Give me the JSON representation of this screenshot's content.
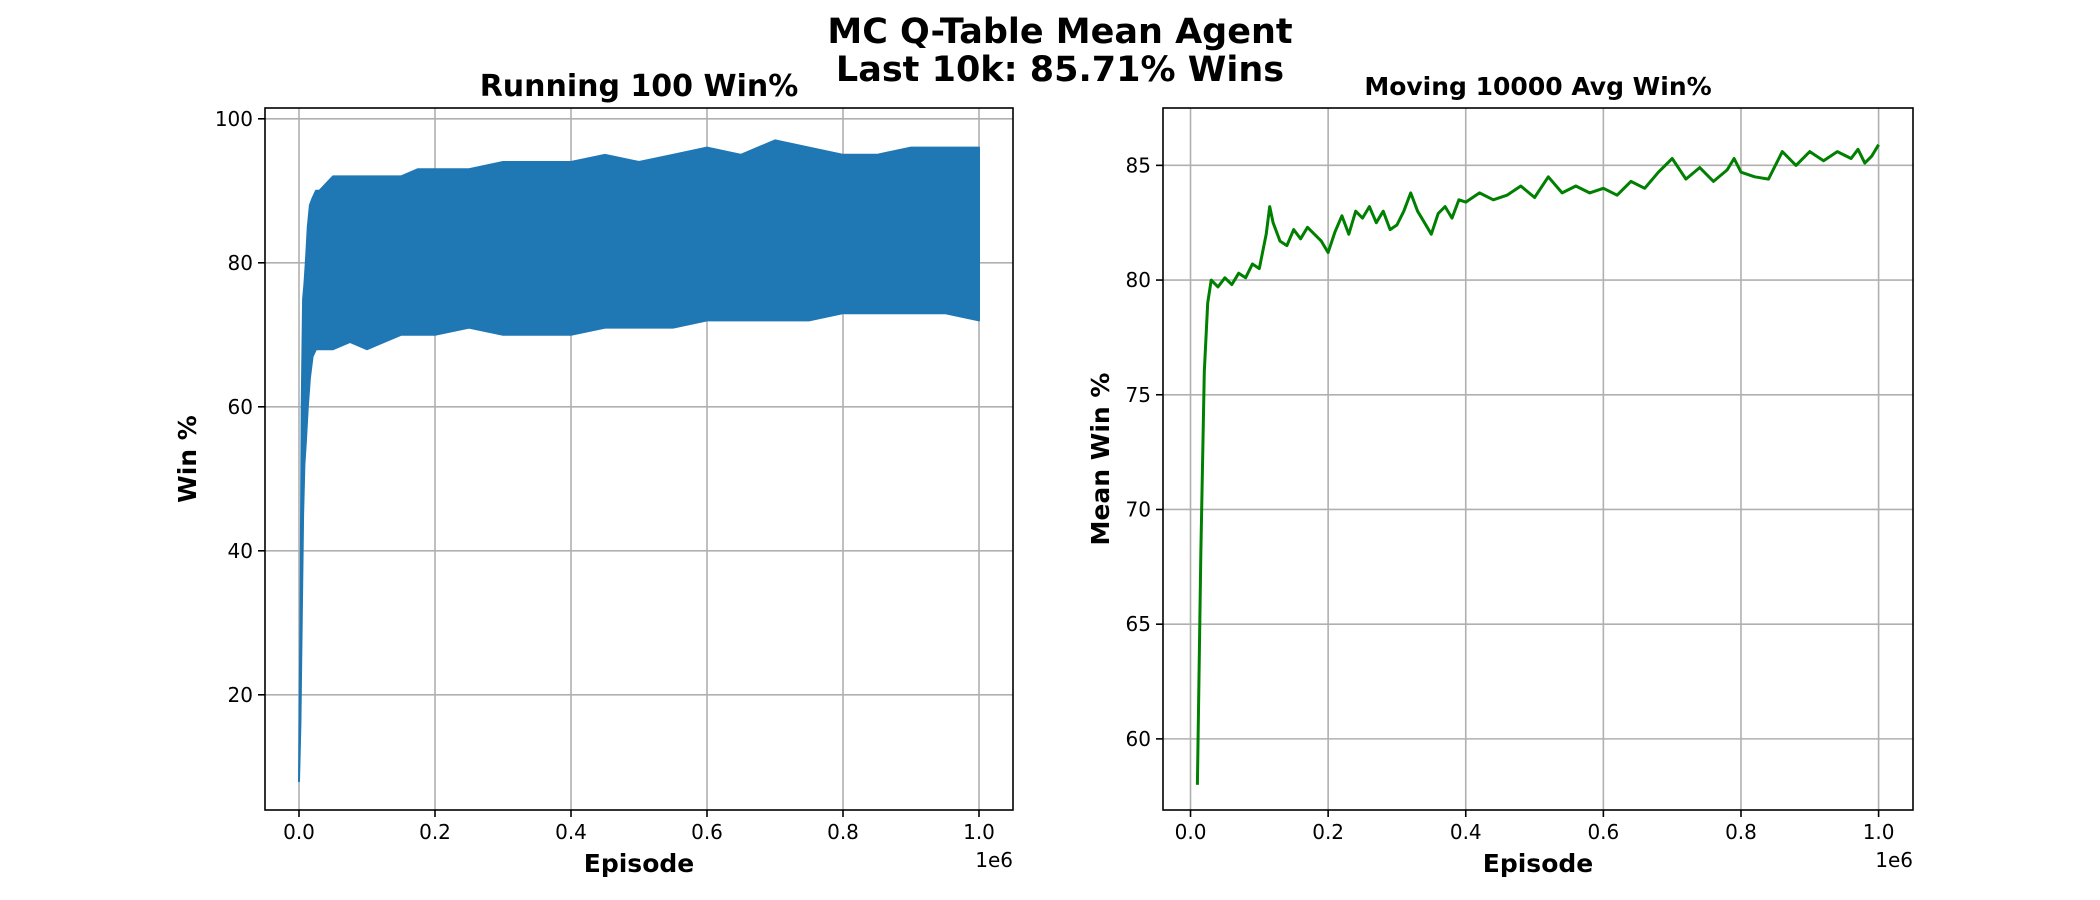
{
  "figure": {
    "title_line1": "MC Q-Table Mean Agent",
    "title_line2": "Last 10k: 85.71% Wins"
  },
  "chart_data": [
    {
      "type": "line",
      "title": "Running 100 Win%",
      "xlabel": "Episode",
      "ylabel": "Win %",
      "x_offset_label": "1e6",
      "xlim": [
        -0.05,
        1.05
      ],
      "ylim": [
        4,
        101.5
      ],
      "xticks": [
        0.0,
        0.2,
        0.4,
        0.6,
        0.8,
        1.0
      ],
      "xtick_labels": [
        "0.0",
        "0.2",
        "0.4",
        "0.6",
        "0.8",
        "1.0"
      ],
      "yticks": [
        20,
        40,
        60,
        80,
        100
      ],
      "ytick_labels": [
        "20",
        "40",
        "60",
        "80",
        "100"
      ],
      "grid": true,
      "color": "#1f77b4",
      "series": [
        {
          "x": [
            0.0,
            0.002,
            0.004,
            0.006,
            0.008,
            0.01,
            0.013,
            0.016,
            0.02,
            0.025,
            0.03,
            0.04,
            0.05,
            0.075,
            0.1,
            0.125,
            0.15,
            0.175,
            0.2,
            0.25,
            0.3,
            0.35,
            0.4,
            0.45,
            0.5,
            0.55,
            0.6,
            0.65,
            0.7,
            0.75,
            0.8,
            0.85,
            0.9,
            0.95,
            1.0
          ],
          "upper": [
            8,
            30,
            60,
            75,
            77,
            80,
            85,
            88,
            89,
            90,
            90,
            91,
            92,
            92,
            92,
            92,
            92,
            93,
            93,
            93,
            94,
            94,
            94,
            95,
            94,
            95,
            96,
            95,
            97,
            96,
            95,
            95,
            96,
            96,
            96
          ],
          "lower": [
            8,
            16,
            30,
            45,
            52,
            55,
            60,
            64,
            67,
            68,
            68,
            68,
            68,
            69,
            68,
            69,
            70,
            70,
            70,
            71,
            70,
            70,
            70,
            71,
            71,
            71,
            72,
            72,
            72,
            72,
            73,
            73,
            73,
            73,
            72
          ]
        }
      ]
    },
    {
      "type": "line",
      "title": "Moving 10000 Avg Win%",
      "xlabel": "Episode",
      "ylabel": "Mean Win %",
      "x_offset_label": "1e6",
      "xlim": [
        -0.04,
        1.05
      ],
      "ylim": [
        56.9,
        87.5
      ],
      "xticks": [
        0.0,
        0.2,
        0.4,
        0.6,
        0.8,
        1.0
      ],
      "xtick_labels": [
        "0.0",
        "0.2",
        "0.4",
        "0.6",
        "0.8",
        "1.0"
      ],
      "yticks": [
        60,
        65,
        70,
        75,
        80,
        85
      ],
      "ytick_labels": [
        "60",
        "65",
        "70",
        "75",
        "80",
        "85"
      ],
      "grid": true,
      "color": "#008000",
      "series": [
        {
          "x": [
            0.01,
            0.015,
            0.02,
            0.025,
            0.03,
            0.04,
            0.05,
            0.06,
            0.07,
            0.08,
            0.09,
            0.1,
            0.11,
            0.115,
            0.12,
            0.13,
            0.14,
            0.15,
            0.16,
            0.17,
            0.18,
            0.19,
            0.2,
            0.21,
            0.22,
            0.23,
            0.24,
            0.25,
            0.26,
            0.27,
            0.28,
            0.29,
            0.3,
            0.31,
            0.32,
            0.33,
            0.34,
            0.35,
            0.36,
            0.37,
            0.38,
            0.39,
            0.4,
            0.42,
            0.44,
            0.46,
            0.48,
            0.5,
            0.52,
            0.54,
            0.56,
            0.58,
            0.6,
            0.62,
            0.64,
            0.66,
            0.68,
            0.7,
            0.72,
            0.74,
            0.76,
            0.78,
            0.79,
            0.8,
            0.82,
            0.84,
            0.86,
            0.88,
            0.9,
            0.91,
            0.92,
            0.94,
            0.96,
            0.97,
            0.98,
            0.99,
            1.0
          ],
          "values": [
            58,
            68,
            76,
            79,
            80,
            79.7,
            80.1,
            79.8,
            80.3,
            80.1,
            80.7,
            80.5,
            82.0,
            83.2,
            82.5,
            81.7,
            81.5,
            82.2,
            81.8,
            82.3,
            82.0,
            81.7,
            81.2,
            82.1,
            82.8,
            82.0,
            83.0,
            82.7,
            83.2,
            82.5,
            83.0,
            82.2,
            82.4,
            83.0,
            83.8,
            83.0,
            82.5,
            82.0,
            82.9,
            83.2,
            82.7,
            83.5,
            83.4,
            83.8,
            83.5,
            83.7,
            84.1,
            83.6,
            84.5,
            83.8,
            84.1,
            83.8,
            84.0,
            83.7,
            84.3,
            84.0,
            84.7,
            85.3,
            84.4,
            84.9,
            84.3,
            84.8,
            85.3,
            84.7,
            84.5,
            84.4,
            85.6,
            85.0,
            85.6,
            85.4,
            85.2,
            85.6,
            85.3,
            85.7,
            85.1,
            85.4,
            85.9
          ]
        }
      ]
    }
  ]
}
